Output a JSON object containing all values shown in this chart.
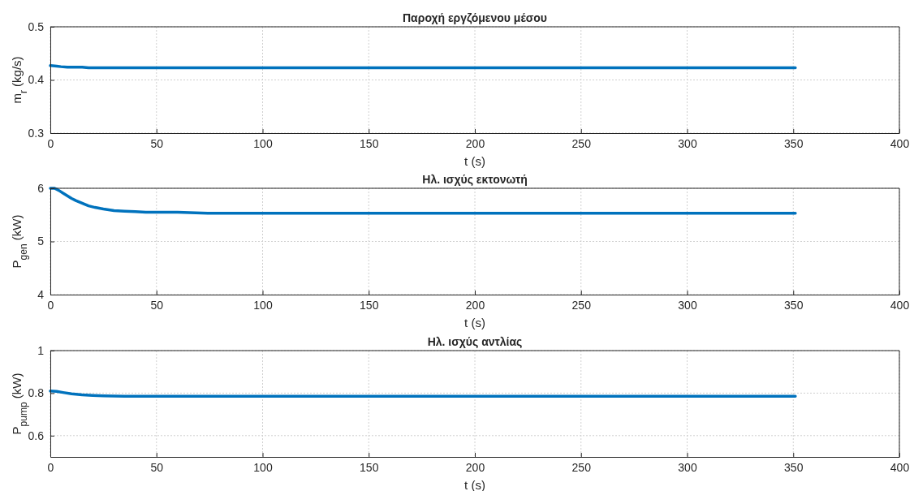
{
  "chart_data": [
    {
      "type": "line",
      "title": "Παροχή εργζόμενου μέσου",
      "xlabel": "t (s)",
      "ylabel": "m$_{r}$ (kg/s)",
      "xlim": [
        0,
        400
      ],
      "xticks": [
        0,
        50,
        100,
        150,
        200,
        250,
        300,
        350,
        400
      ],
      "ylim": [
        0.3,
        0.5
      ],
      "yticks": [
        0.3,
        0.4,
        0.5
      ],
      "grid": true,
      "series": [
        {
          "color": "#0072bd",
          "x": [
            0,
            3,
            5,
            8,
            10,
            15,
            18,
            30,
            60,
            100,
            200,
            300,
            351
          ],
          "values": [
            0.427,
            0.426,
            0.425,
            0.424,
            0.424,
            0.424,
            0.423,
            0.423,
            0.423,
            0.423,
            0.423,
            0.423,
            0.423
          ]
        }
      ]
    },
    {
      "type": "line",
      "title": "Ηλ. ισχύς εκτονωτή",
      "xlabel": "t (s)",
      "ylabel": "P$_{gen}$ (kW)",
      "xlim": [
        0,
        400
      ],
      "xticks": [
        0,
        50,
        100,
        150,
        200,
        250,
        300,
        350,
        400
      ],
      "ylim": [
        4,
        6
      ],
      "yticks": [
        4,
        5,
        6
      ],
      "grid": true,
      "series": [
        {
          "color": "#0072bd",
          "x": [
            0,
            2,
            4,
            6,
            8,
            10,
            12,
            15,
            18,
            21,
            25,
            30,
            35,
            40,
            45,
            60,
            75,
            100,
            200,
            300,
            351
          ],
          "values": [
            6.0,
            6.0,
            5.96,
            5.91,
            5.86,
            5.81,
            5.77,
            5.72,
            5.67,
            5.64,
            5.61,
            5.58,
            5.57,
            5.56,
            5.55,
            5.55,
            5.53,
            5.53,
            5.53,
            5.53,
            5.53
          ]
        }
      ]
    },
    {
      "type": "line",
      "title": "Ηλ. ισχύς αντλίας",
      "xlabel": "t (s)",
      "ylabel": "P$_{pump}$ (kW)",
      "xlim": [
        0,
        400
      ],
      "xticks": [
        0,
        50,
        100,
        150,
        200,
        250,
        300,
        350,
        400
      ],
      "ylim": [
        0.5,
        1
      ],
      "yticks": [
        0.6,
        0.8,
        1
      ],
      "grid": true,
      "series": [
        {
          "color": "#0072bd",
          "x": [
            0,
            3,
            6,
            10,
            15,
            20,
            25,
            35,
            50,
            100,
            200,
            300,
            351
          ],
          "values": [
            0.81,
            0.808,
            0.803,
            0.797,
            0.792,
            0.789,
            0.787,
            0.785,
            0.785,
            0.785,
            0.785,
            0.785,
            0.785
          ]
        }
      ]
    }
  ]
}
